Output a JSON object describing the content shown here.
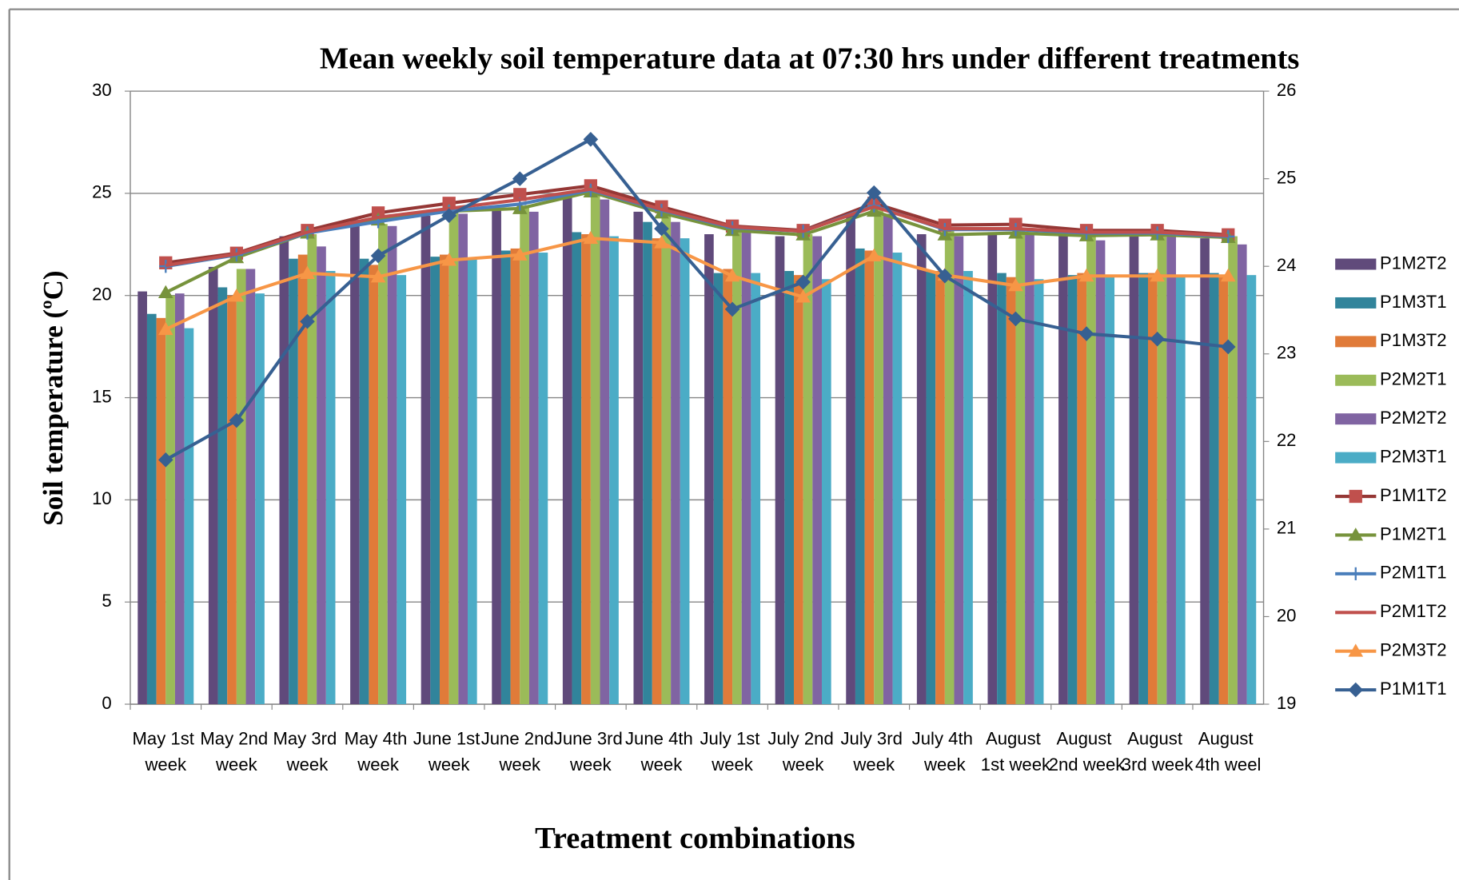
{
  "chart_data": {
    "type": "bar",
    "title": "Mean weekly soil temperature data at 07:30 hrs under different treatments",
    "x_label": "Treatment combinations",
    "y_label": "Soil temperature (ºC)",
    "categories": [
      "May 1st week",
      "May 2nd week",
      "May 3rd week",
      "May 4th week",
      "June 1st week",
      "June 2nd week",
      "June 3rd week",
      "June 4th week",
      "July 1st week",
      "July 2nd week",
      "July 3rd week",
      "July 4th week",
      "August 1st week",
      "August 2nd week",
      "August 3rd week",
      "August 4th weel"
    ],
    "ylim": [
      0,
      30
    ],
    "yticks": [
      0,
      5,
      10,
      15,
      20,
      25,
      30
    ],
    "y2lim": [
      19,
      26
    ],
    "y2ticks": [
      19,
      20,
      21,
      22,
      23,
      24,
      25,
      26
    ],
    "grid": true,
    "legend": "right",
    "series": [
      {
        "name": "P1M2T2",
        "color": "#604a7b",
        "values": [
          20.2,
          21.4,
          22.9,
          23.7,
          23.9,
          24.2,
          24.9,
          24.1,
          23.0,
          22.9,
          24.0,
          23.0,
          23.1,
          23.0,
          23.0,
          22.8
        ]
      },
      {
        "name": "P1M3T1",
        "color": "#31849b",
        "values": [
          19.1,
          20.4,
          21.8,
          21.8,
          21.9,
          22.2,
          23.1,
          23.6,
          21.1,
          21.2,
          22.3,
          21.2,
          21.1,
          21.0,
          21.1,
          21.1
        ]
      },
      {
        "name": "P1M3T2",
        "color": "#e07b39",
        "values": [
          18.9,
          20.0,
          22.0,
          21.5,
          22.0,
          22.3,
          23.0,
          22.8,
          21.3,
          21.0,
          22.2,
          21.2,
          20.9,
          21.1,
          21.1,
          21.0
        ]
      },
      {
        "name": "P2M2T1",
        "color": "#9bbb59",
        "values": [
          20.0,
          21.3,
          23.0,
          23.5,
          24.2,
          24.4,
          25.0,
          24.0,
          23.3,
          23.0,
          24.2,
          23.3,
          23.3,
          23.1,
          23.0,
          22.9
        ]
      },
      {
        "name": "P2M2T2",
        "color": "#8064a2",
        "values": [
          20.1,
          21.3,
          22.4,
          23.4,
          24.0,
          24.1,
          24.7,
          23.6,
          23.1,
          22.9,
          24.0,
          22.9,
          23.0,
          22.7,
          22.9,
          22.5
        ]
      },
      {
        "name": "P2M3T1",
        "color": "#4bacc6",
        "values": [
          18.4,
          20.1,
          21.2,
          21.0,
          21.8,
          22.1,
          22.9,
          22.8,
          21.1,
          20.8,
          22.1,
          21.2,
          20.8,
          20.9,
          20.9,
          21.0
        ]
      },
      {
        "name": "P1M1T2",
        "type": "line",
        "axis": "y2",
        "marker": "square",
        "color": "#953735",
        "marker_color": "#c0504d",
        "values": [
          24.04,
          24.15,
          24.41,
          24.61,
          24.72,
          24.82,
          24.92,
          24.68,
          24.46,
          24.41,
          24.72,
          24.47,
          24.48,
          24.41,
          24.41,
          24.36
        ]
      },
      {
        "name": "P1M2T1",
        "type": "line",
        "axis": "y2",
        "marker": "triangle",
        "color": "#77933c",
        "marker_color": "#77933c",
        "values": [
          23.7,
          24.1,
          24.38,
          24.53,
          24.63,
          24.66,
          24.85,
          24.61,
          24.41,
          24.36,
          24.63,
          24.36,
          24.38,
          24.35,
          24.36,
          24.33
        ]
      },
      {
        "name": "P2M1T1",
        "type": "line",
        "axis": "y2",
        "marker": "plus",
        "color": "#4a7ebb",
        "marker_color": "#4a7ebb",
        "values": [
          24.0,
          24.13,
          24.38,
          24.51,
          24.63,
          24.71,
          24.87,
          24.64,
          24.44,
          24.4,
          24.69,
          24.42,
          24.42,
          24.38,
          24.38,
          24.34
        ]
      },
      {
        "name": "P2M1T2",
        "type": "line",
        "axis": "y2",
        "marker": "none",
        "color": "#c0504d",
        "marker_color": "#c0504d",
        "values": [
          24.01,
          24.14,
          24.39,
          24.56,
          24.66,
          24.76,
          24.88,
          24.65,
          24.45,
          24.4,
          24.68,
          24.43,
          24.43,
          24.39,
          24.39,
          24.35
        ]
      },
      {
        "name": "P2M3T2",
        "type": "line",
        "axis": "y2",
        "marker": "triangle",
        "color": "#f79646",
        "marker_color": "#f79646",
        "values": [
          23.28,
          23.66,
          23.92,
          23.88,
          24.07,
          24.13,
          24.32,
          24.27,
          23.89,
          23.65,
          24.12,
          23.9,
          23.78,
          23.89,
          23.89,
          23.89
        ]
      },
      {
        "name": "P1M1T1",
        "type": "line",
        "axis": "y2",
        "marker": "diamond",
        "color": "#376092",
        "marker_color": "#376092",
        "values": [
          21.79,
          22.24,
          23.37,
          24.12,
          24.58,
          25.0,
          25.45,
          24.43,
          23.51,
          23.82,
          24.84,
          23.89,
          23.4,
          23.23,
          23.17,
          23.08
        ]
      }
    ]
  }
}
